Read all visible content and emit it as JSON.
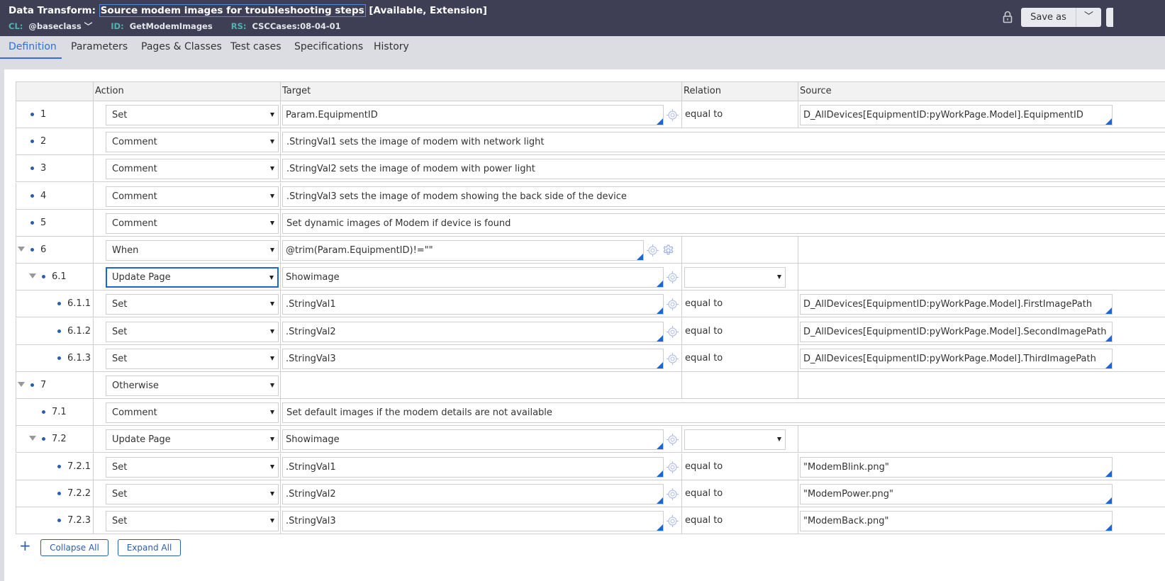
{
  "header": {
    "prefix": "Data Transform:",
    "title": "Source modem images for troubleshooting steps",
    "status": "[Available, Extension]",
    "cl_label": "CL:",
    "cl_value": "@baseclass",
    "id_label": "ID:",
    "id_value": "GetModemImages",
    "rs_label": "RS:",
    "rs_value": "CSCCases:08-04-01",
    "save_as": "Save as"
  },
  "tabs": [
    {
      "label": "Definition",
      "active": true
    },
    {
      "label": "Parameters"
    },
    {
      "label": "Pages & Classes"
    },
    {
      "label": "Test cases"
    },
    {
      "label": "Specifications"
    },
    {
      "label": "History"
    }
  ],
  "table": {
    "columns": [
      "",
      "Action",
      "Target",
      "Relation",
      "Source"
    ],
    "rows": [
      {
        "num": "1",
        "level": 0,
        "action": "Set",
        "target": "Param.EquipmentID",
        "relation": "equal to",
        "source": "D_AllDevices[EquipmentID:pyWorkPage.Model].EquipmentID"
      },
      {
        "num": "2",
        "level": 0,
        "action": "Comment",
        "comment": ".StringVal1 sets the image of modem with network light"
      },
      {
        "num": "3",
        "level": 0,
        "action": "Comment",
        "comment": ".StringVal2 sets the image of modem with power light"
      },
      {
        "num": "4",
        "level": 0,
        "action": "Comment",
        "comment": ".StringVal3 sets the image of modem showing the back side of the device"
      },
      {
        "num": "5",
        "level": 0,
        "action": "Comment",
        "comment": "Set dynamic images of Modem if device is found"
      },
      {
        "num": "6",
        "level": 0,
        "expandable": true,
        "action": "When",
        "target": "@trim(Param.EquipmentID)!=\"\"",
        "gear": true
      },
      {
        "num": "6.1",
        "level": 1,
        "expandable": true,
        "action": "Update Page",
        "focused": true,
        "target": "Showimage",
        "relation_select": ""
      },
      {
        "num": "6.1.1",
        "level": 2,
        "action": "Set",
        "target": ".StringVal1",
        "relation": "equal to",
        "source": "D_AllDevices[EquipmentID:pyWorkPage.Model].FirstImagePath"
      },
      {
        "num": "6.1.2",
        "level": 2,
        "action": "Set",
        "target": ".StringVal2",
        "relation": "equal to",
        "source": "D_AllDevices[EquipmentID:pyWorkPage.Model].SecondImagePath"
      },
      {
        "num": "6.1.3",
        "level": 2,
        "action": "Set",
        "target": ".StringVal3",
        "relation": "equal to",
        "source": "D_AllDevices[EquipmentID:pyWorkPage.Model].ThirdImagePath"
      },
      {
        "num": "7",
        "level": 0,
        "expandable": true,
        "action": "Otherwise"
      },
      {
        "num": "7.1",
        "level": 1,
        "action": "Comment",
        "comment": "Set default images if the modem details are not available"
      },
      {
        "num": "7.2",
        "level": 1,
        "expandable": true,
        "action": "Update Page",
        "target": "Showimage",
        "relation_select": ""
      },
      {
        "num": "7.2.1",
        "level": 2,
        "action": "Set",
        "target": ".StringVal1",
        "relation": "equal to",
        "source": "\"ModemBlink.png\""
      },
      {
        "num": "7.2.2",
        "level": 2,
        "action": "Set",
        "target": ".StringVal2",
        "relation": "equal to",
        "source": "\"ModemPower.png\""
      },
      {
        "num": "7.2.3",
        "level": 2,
        "action": "Set",
        "target": ".StringVal3",
        "relation": "equal to",
        "source": "\"ModemBack.png\""
      }
    ]
  },
  "footer": {
    "collapse_all": "Collapse All",
    "expand_all": "Expand All"
  }
}
